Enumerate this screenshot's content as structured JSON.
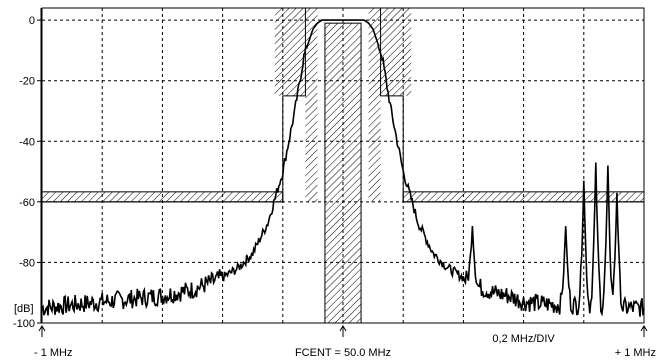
{
  "chart_data": {
    "type": "line",
    "y_unit_label": "[dB]",
    "y_ticks": [
      0,
      -20,
      -40,
      -60,
      -80,
      -100
    ],
    "tick_labels": [
      "0",
      "-20",
      "-40",
      "-60",
      "-80",
      "-100"
    ],
    "ylim": [
      -100,
      4
    ],
    "x_span_mhz": [
      -1,
      1
    ],
    "x_divisions": 10,
    "grid": true,
    "labels": {
      "left": "- 1 MHz",
      "center": "FCENT = 50.0 MHz",
      "div": "0,2 MHz/DIV",
      "right": "+ 1 MHz"
    },
    "mask_limit_db": -59.5,
    "noise_floor_db": -94,
    "passband_db": 0,
    "series": [
      {
        "x": [
          -1.0,
          -0.9,
          -0.8,
          -0.7,
          -0.6,
          -0.5,
          -0.45,
          -0.4,
          -0.35,
          -0.3,
          -0.25,
          -0.2,
          -0.16,
          -0.13,
          -0.1,
          -0.085,
          -0.07,
          -0.05,
          0.0,
          0.05,
          0.07,
          0.085,
          0.1,
          0.13,
          0.16,
          0.2,
          0.25,
          0.3,
          0.35,
          0.4,
          0.45,
          0.5,
          0.55,
          0.6,
          0.7,
          0.8,
          0.9,
          1.0
        ],
        "values": [
          -95,
          -94,
          -93,
          -92,
          -91,
          -89,
          -87,
          -85,
          -82,
          -77,
          -67,
          -50,
          -30,
          -12,
          -3,
          -1,
          0,
          0,
          0,
          0,
          0,
          -1,
          -3,
          -12,
          -30,
          -50,
          -67,
          -77,
          -82,
          -85,
          -88,
          -90,
          -91,
          -93,
          -94,
          -94,
          -95,
          -95
        ]
      }
    ],
    "spurs": [
      {
        "x": 0.43,
        "values": [
          -82,
          -68,
          -81
        ]
      },
      {
        "x": 0.74,
        "values": [
          -80,
          -68,
          -83
        ]
      },
      {
        "x": 0.8,
        "values": [
          -78,
          -53,
          -84
        ]
      },
      {
        "x": 0.84,
        "values": [
          -74,
          -47,
          -86
        ]
      },
      {
        "x": 0.88,
        "values": [
          -76,
          -48,
          -84
        ]
      },
      {
        "x": 0.91,
        "values": [
          -80,
          -57,
          -87
        ]
      }
    ],
    "mask": {
      "passband_edge_mhz": 0.085,
      "wide_edge_mhz": 0.2,
      "shoulder_db": -25,
      "outer_level_db": -60
    }
  }
}
